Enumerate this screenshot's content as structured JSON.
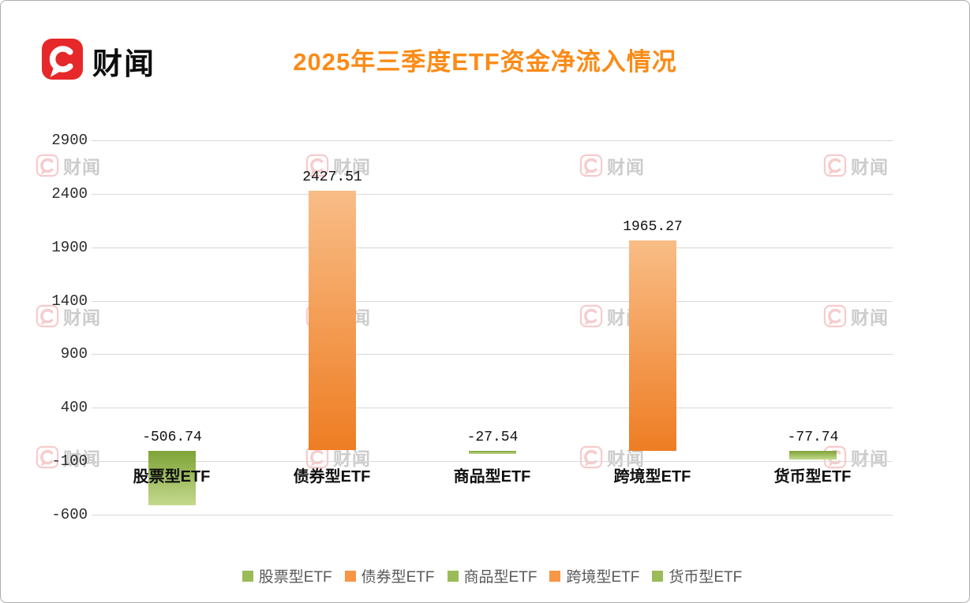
{
  "brand": {
    "logo_text": "财闻",
    "logo_color": "#e6282a"
  },
  "title": "2025年三季度ETF资金净流入情况",
  "title_color": "#fb8b17",
  "watermark": {
    "text": "财闻"
  },
  "chart_data": {
    "type": "bar",
    "title": "2025年三季度ETF资金净流入情况",
    "categories": [
      "股票型ETF",
      "债券型ETF",
      "商品型ETF",
      "跨境型ETF",
      "货币型ETF"
    ],
    "values": [
      -506.74,
      2427.51,
      -27.54,
      1965.27,
      -77.74
    ],
    "data_labels": [
      "-506.74",
      "2427.51",
      "-27.54",
      "1965.27",
      "-77.74"
    ],
    "series_colors": [
      "#9BBB59",
      "#F79646",
      "#9BBB59",
      "#F79646",
      "#9BBB59"
    ],
    "xlabel": "",
    "ylabel": "",
    "ylim": [
      -600,
      2900
    ],
    "yticks": [
      2900,
      2400,
      1900,
      1400,
      900,
      400,
      -100,
      -600
    ],
    "grid": true,
    "legend_position": "bottom",
    "legend": [
      {
        "label": "股票型ETF",
        "color": "#9BBB59"
      },
      {
        "label": "债券型ETF",
        "color": "#F79646"
      },
      {
        "label": "商品型ETF",
        "color": "#9BBB59"
      },
      {
        "label": "跨境型ETF",
        "color": "#F79646"
      },
      {
        "label": "货币型ETF",
        "color": "#9BBB59"
      }
    ]
  }
}
